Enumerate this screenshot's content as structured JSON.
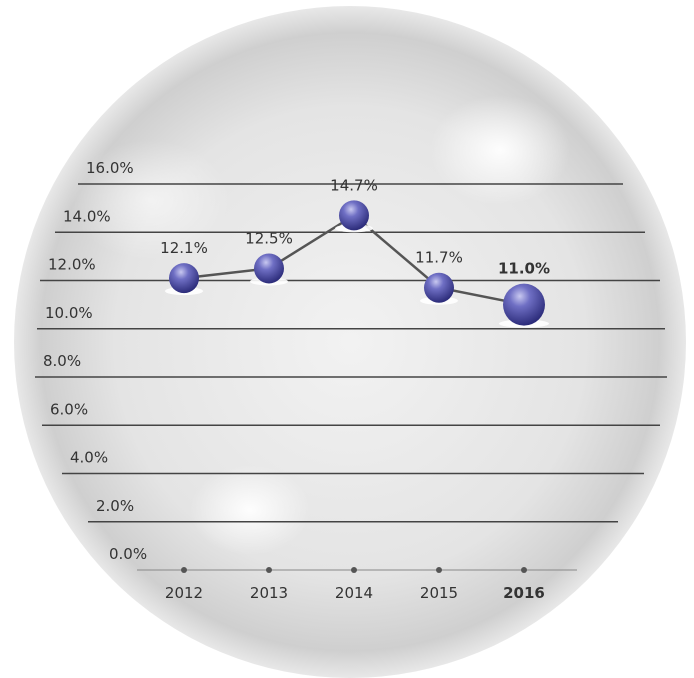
{
  "chart_data": {
    "type": "line",
    "categories": [
      "2012",
      "2013",
      "2014",
      "2015",
      "2016"
    ],
    "series": [
      {
        "color": "#5a5ab0",
        "values": [
          12.1,
          12.5,
          14.7,
          11.7,
          11.0
        ],
        "value_labels": [
          "12.1%",
          "12.5%",
          "14.7%",
          "11.7%",
          "11.0%"
        ]
      }
    ],
    "ylim": [
      0,
      16
    ],
    "yticks": [
      {
        "value": 0,
        "label": "0.0%"
      },
      {
        "value": 2,
        "label": "2.0%"
      },
      {
        "value": 4,
        "label": "4.0%"
      },
      {
        "value": 6,
        "label": "6.0%"
      },
      {
        "value": 8,
        "label": "8.0%"
      },
      {
        "value": 10,
        "label": "10.0%"
      },
      {
        "value": 12,
        "label": "12.0%"
      },
      {
        "value": 14,
        "label": "14.0%"
      },
      {
        "value": 16,
        "label": "16.0%"
      }
    ],
    "grid": true
  }
}
